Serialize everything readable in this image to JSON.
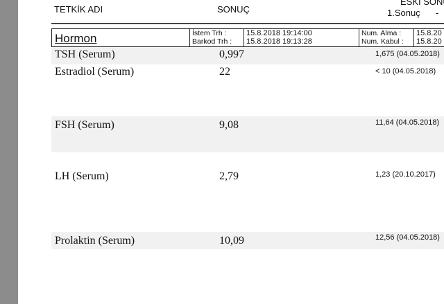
{
  "header": {
    "test_name": "TETKİK ADI",
    "result": "SONUÇ",
    "previous": "ESKİ SONUÇ",
    "first_result": "1.Sonuç",
    "dash": "-"
  },
  "group": {
    "name": "Hormon",
    "request_label": "İstem Trh  :",
    "barcode_label": "Barkod Trh :",
    "request_date": "15.8.2018 19:14:00",
    "barcode_date": "15.8.2018 19:13:28",
    "sample_label": "Num. Alma :",
    "accept_label": "Num. Kabul :",
    "sample_date": "15.8.20",
    "accept_date": "15.8.20"
  },
  "rows": [
    {
      "name": "TSH (Serum)",
      "value": "0,997",
      "previous": "1,675 (04.05.2018)"
    },
    {
      "name": "Estradiol (Serum)",
      "value": "22",
      "previous": "< 10 (04.05.2018)"
    },
    {
      "name": "FSH (Serum)",
      "value": "9,08",
      "previous": "11,64 (04.05.2018)"
    },
    {
      "name": "LH (Serum)",
      "value": "2,79",
      "previous": "1,23 (20.10.2017)"
    },
    {
      "name": "Prolaktin (Serum)",
      "value": "10,09",
      "previous": "12,56 (04.05.2018)"
    }
  ]
}
